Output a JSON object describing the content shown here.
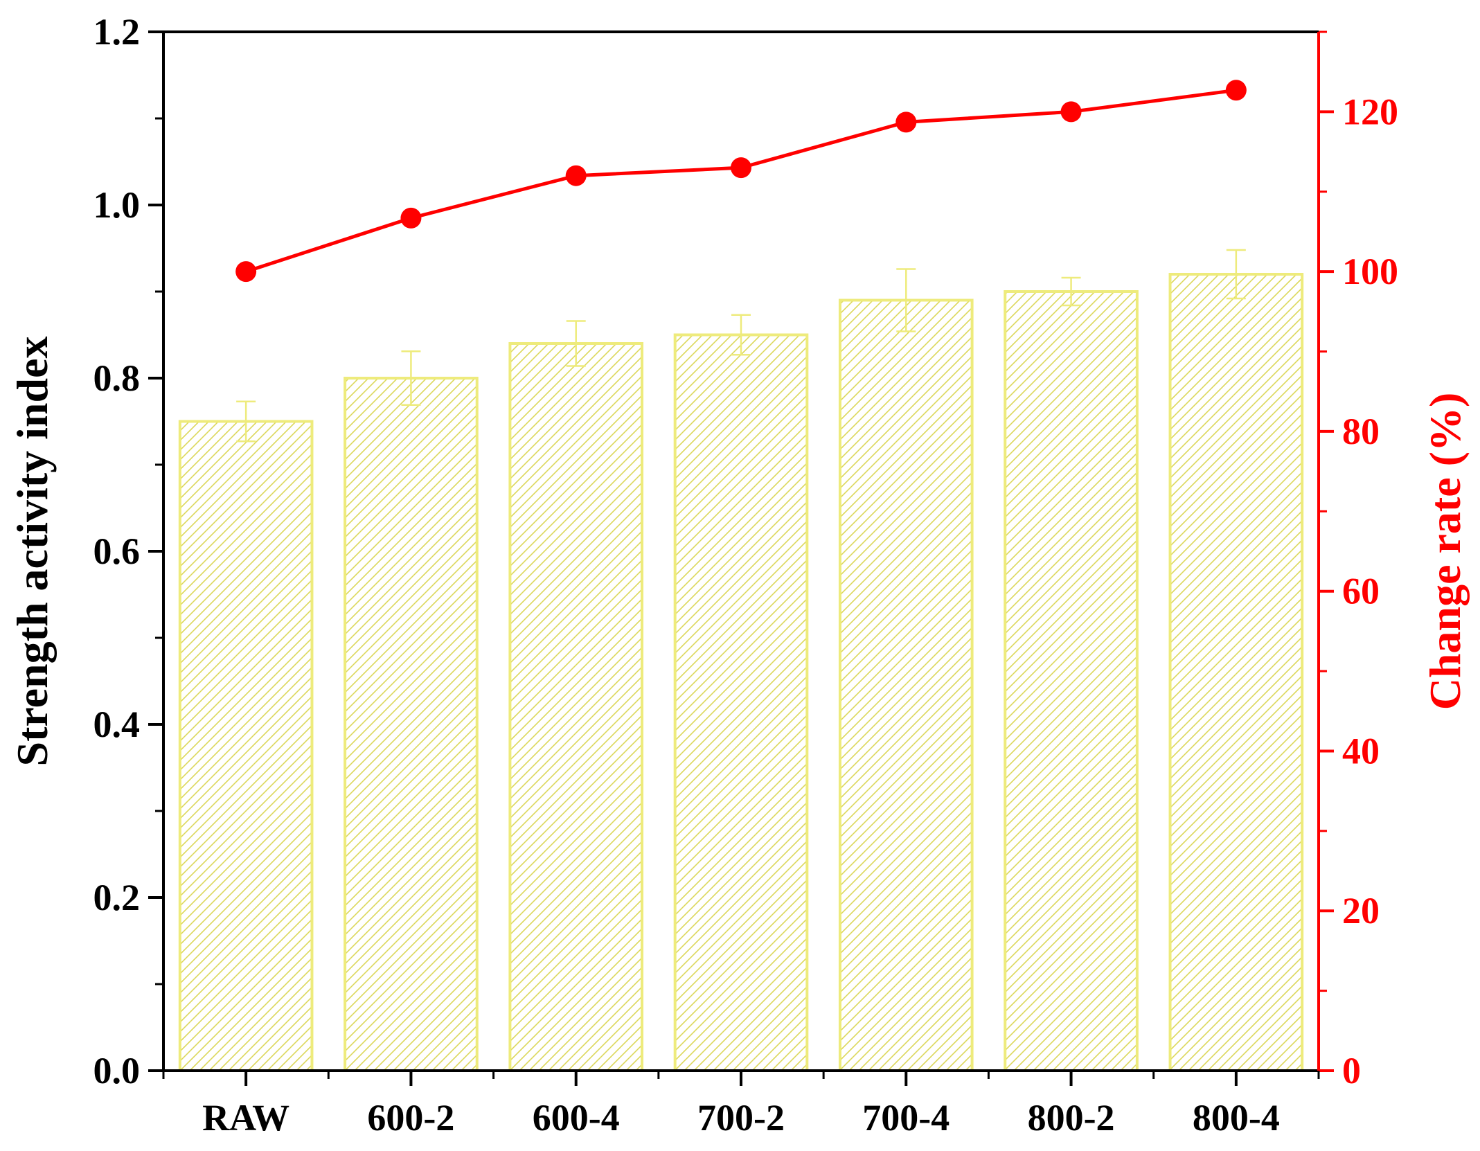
{
  "chart_data": {
    "type": "bar",
    "categories": [
      "RAW",
      "600-2",
      "600-4",
      "700-2",
      "700-4",
      "800-2",
      "800-4"
    ],
    "series": [
      {
        "type": "bar",
        "axis": "left",
        "values": [
          0.75,
          0.8,
          0.84,
          0.85,
          0.89,
          0.9,
          0.92
        ],
        "error": [
          0.023,
          0.031,
          0.026,
          0.023,
          0.036,
          0.016,
          0.028
        ]
      },
      {
        "type": "line",
        "axis": "right",
        "values": [
          100,
          106.7,
          112.0,
          113.0,
          118.7,
          120.0,
          122.7
        ]
      }
    ],
    "y_left": {
      "label": "Strength activity index",
      "ylim": [
        0,
        1.2
      ],
      "ticks": [
        "0.0",
        "0.2",
        "0.4",
        "0.6",
        "0.8",
        "1.0",
        "1.2"
      ]
    },
    "y_right": {
      "label": "Change rate (%)",
      "ylim": [
        0,
        130
      ],
      "ticks": [
        "0",
        "20",
        "40",
        "60",
        "80",
        "100",
        "120"
      ]
    },
    "grid": false,
    "legend": "none",
    "colors": {
      "bar": "#eeeb7c",
      "bar_hatch": "#dcd85a",
      "line": "#ff0000",
      "right_axis": "#ff0000",
      "left_axis": "#000000"
    }
  }
}
